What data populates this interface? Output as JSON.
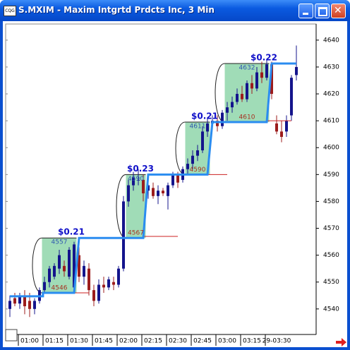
{
  "window": {
    "title": "S.MXIM - Maxim Intgrtd Prdcts Inc, 3 Min"
  },
  "chart_data": {
    "type": "candlestick",
    "categories": [
      null,
      null,
      null,
      null,
      "01:00",
      null,
      null,
      null,
      null,
      "01:15",
      null,
      null,
      null,
      null,
      "01:30",
      null,
      null,
      null,
      null,
      "01:45",
      null,
      null,
      null,
      null,
      "02:00",
      null,
      null,
      null,
      null,
      "02:15",
      null,
      null,
      null,
      null,
      "02:30",
      null,
      null,
      null,
      null,
      "02:45",
      null,
      null,
      null,
      null,
      "03:00",
      null,
      null,
      null,
      null,
      "03:15",
      null,
      null,
      null,
      null,
      "29-03:30",
      null,
      null,
      null,
      null
    ],
    "open": [
      4540,
      4544,
      4542,
      4545,
      4543,
      4540,
      4543,
      4547,
      4550,
      4552,
      4555,
      4556,
      4552,
      4548,
      4560,
      4552,
      4555,
      4547,
      4543,
      4549,
      4548,
      4550,
      4549,
      4555,
      4580,
      4586,
      4588,
      4588,
      4584,
      4585,
      4582,
      4584,
      4582,
      4586,
      4590,
      4588,
      4592,
      4594,
      4597,
      4599,
      4606,
      4609,
      4610,
      4608,
      4613,
      4615,
      4617,
      4620,
      4618,
      4624,
      4622,
      4628,
      4626,
      4631,
      4609,
      4606,
      4606,
      4612,
      4627
    ],
    "high": [
      4545,
      4546,
      4546,
      4547,
      4546,
      4544,
      4548,
      4552,
      4556,
      4557,
      4562,
      4558,
      4563,
      4565,
      4563,
      4558,
      4557,
      4549,
      4551,
      4552,
      4552,
      4552,
      4556,
      4582,
      4588,
      4591,
      4592,
      4590,
      4587,
      4587,
      4586,
      4585,
      4587,
      4591,
      4591,
      4593,
      4596,
      4599,
      4601,
      4608,
      4611,
      4612,
      4612,
      4614,
      4617,
      4619,
      4622,
      4623,
      4625,
      4627,
      4630,
      4632,
      4633,
      4632,
      4612,
      4610,
      4612,
      4627,
      4638
    ],
    "low": [
      4537,
      4541,
      4540,
      4538,
      4537,
      4538,
      4542,
      4546,
      4548,
      4551,
      4553,
      4552,
      4551,
      4547,
      4550,
      4549,
      4545,
      4541,
      4542,
      4546,
      4547,
      4547,
      4548,
      4554,
      4578,
      4584,
      4586,
      4580,
      4581,
      4581,
      4579,
      4582,
      4577,
      4585,
      4585,
      4587,
      4590,
      4592,
      4595,
      4598,
      4604,
      4607,
      4606,
      4607,
      4610,
      4613,
      4616,
      4617,
      4617,
      4620,
      4621,
      4624,
      4625,
      4618,
      4605,
      4602,
      4604,
      4610,
      4625
    ],
    "close": [
      4543,
      4542,
      4545,
      4541,
      4540,
      4543,
      4547,
      4550,
      4555,
      4556,
      4560,
      4554,
      4562,
      4564,
      4552,
      4556,
      4547,
      4543,
      4549,
      4548,
      4551,
      4549,
      4555,
      4580,
      4586,
      4589,
      4588,
      4583,
      4586,
      4582,
      4584,
      4583,
      4586,
      4590,
      4587,
      4592,
      4594,
      4597,
      4599,
      4606,
      4609,
      4610,
      4608,
      4613,
      4615,
      4617,
      4620,
      4618,
      4624,
      4622,
      4628,
      4626,
      4631,
      4620,
      4606,
      4604,
      4610,
      4626,
      4630
    ],
    "up_color": "#14148c",
    "down_color": "#9c1c1c",
    "ylim": [
      4530.5,
      4646
    ],
    "yticks": [
      4540,
      4550,
      4560,
      4570,
      4580,
      4590,
      4600,
      4610,
      4620,
      4630,
      4640
    ],
    "zones": [
      {
        "start": 7,
        "end": 13,
        "top": 4566.4,
        "bottom": 4546,
        "change": "$0.21",
        "high": 4557,
        "low": 4546
      },
      {
        "start": 24,
        "end": 27,
        "top": 4590,
        "bottom": 4566.4,
        "change": "$0.23",
        "high": 4590,
        "low": 4567
      },
      {
        "start": 36,
        "end": 40,
        "top": 4609.5,
        "bottom": 4590,
        "change": "$0.21",
        "high": 4611,
        "low": 4590
      },
      {
        "start": 44,
        "end": 52,
        "top": 4631.3,
        "bottom": 4609.5,
        "change": "$0.22",
        "high": 4632,
        "low": 4610
      }
    ],
    "zone_color": "#8fd6aa",
    "step_line": {
      "color": "#2a8cf0",
      "x": [
        0,
        6.7,
        6.7,
        13,
        14,
        27,
        28,
        40,
        41,
        52,
        53,
        58
      ],
      "values": [
        4544.7,
        4544.7,
        4546,
        4546,
        4566.4,
        4566.4,
        4590,
        4590,
        4609.5,
        4609.5,
        4631.3,
        4631.3
      ]
    },
    "support_lines": [
      {
        "value": 4546,
        "x": [
          13,
          16
        ]
      },
      {
        "value": 4567,
        "x": [
          27,
          34
        ]
      },
      {
        "value": 4590,
        "x": [
          40,
          44
        ]
      },
      {
        "value": 4610,
        "x": [
          52,
          57
        ]
      }
    ],
    "support_color": "#cc2020"
  }
}
